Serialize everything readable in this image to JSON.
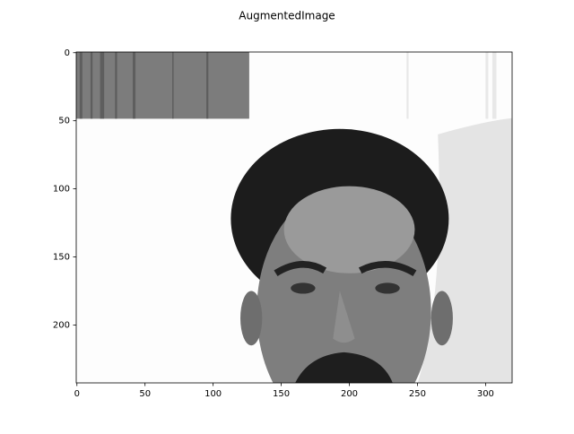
{
  "chart_data": {
    "type": "image",
    "title": "AugmentedImage",
    "xlim": [
      -0.5,
      319.5
    ],
    "ylim": [
      242.5,
      -0.5
    ],
    "xticks": [
      0,
      50,
      100,
      150,
      200,
      250,
      300
    ],
    "yticks": [
      0,
      50,
      100,
      150,
      200
    ]
  }
}
